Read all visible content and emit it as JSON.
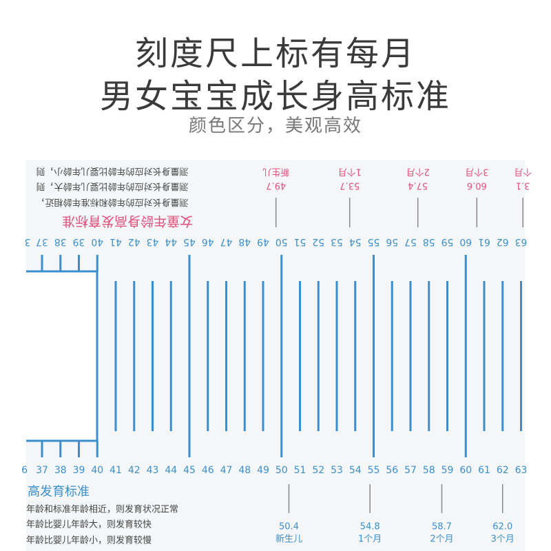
{
  "header": {
    "title_line1": "刻度尺上标有每月",
    "title_line2": "男女宝宝成长身高标准",
    "subtitle": "颜色区分，美观高效"
  },
  "colors": {
    "tick": "#3b8fcc",
    "number": "#3b8fcc",
    "pink": "#e0507a",
    "ruler_bg": "#f4f6f8",
    "dark_text": "#444444",
    "marker": "#888888"
  },
  "ruler": {
    "start": 37,
    "end": 63,
    "top_partial": "3",
    "bottom_partial": "6"
  },
  "girl": {
    "title": "女童年龄身高发育标准",
    "notes": [
      "测量身长对应的年龄比婴儿年龄小，则",
      "测量身长对应的年龄比婴儿年龄大，则",
      "测量身长对应的年龄和标准年龄相近，"
    ],
    "markers": [
      {
        "value": "49.7",
        "label": "新生儿",
        "cm": 49.7
      },
      {
        "value": "53.7",
        "label": "1个月",
        "cm": 53.7
      },
      {
        "value": "57.4",
        "label": "2个月",
        "cm": 57.4
      },
      {
        "value": "60.6",
        "label": "3个月",
        "cm": 60.6
      },
      {
        "value": "3.1",
        "label": "个月",
        "cm": 63.1
      }
    ]
  },
  "boy": {
    "title": "高发育标准",
    "notes": [
      "年龄和标准年龄相近，则发育状况正常",
      "年龄比婴儿年龄大，则发育较快",
      "年龄比婴儿年龄小，则发育较慢"
    ],
    "markers": [
      {
        "value": "50.4",
        "label": "新生儿",
        "cm": 50.4
      },
      {
        "value": "54.8",
        "label": "1个月",
        "cm": 54.8
      },
      {
        "value": "58.7",
        "label": "2个月",
        "cm": 58.7
      },
      {
        "value": "62.0",
        "label": "3个月",
        "cm": 62.0
      }
    ]
  }
}
